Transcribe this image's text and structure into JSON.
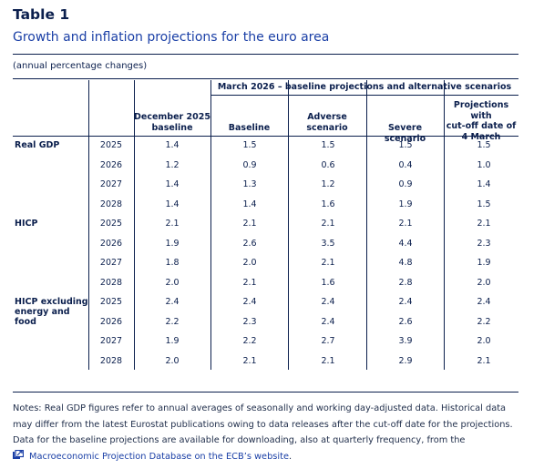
{
  "title": "Table 1",
  "subtitle": "Growth and inflation projections for the euro area",
  "unit_note": "(annual percentage changes)",
  "headers": {
    "group": "March 2026 – baseline projections and alternative scenarios",
    "december_line1": "December 2025",
    "december_line2": "baseline",
    "baseline": "Baseline",
    "adverse_line1": "Adverse",
    "adverse_line2": "scenario",
    "severe": "Severe scenario",
    "cutoff_line1": "Projections with",
    "cutoff_line2": "cut-off date of",
    "cutoff_line3": "4 March"
  },
  "groups": [
    {
      "label_lines": [
        "Real GDP"
      ],
      "rows": [
        {
          "year": "2025",
          "dec": "1.4",
          "base": "1.5",
          "adv": "1.5",
          "sev": "1.5",
          "cut": "1.5"
        },
        {
          "year": "2026",
          "dec": "1.2",
          "base": "0.9",
          "adv": "0.6",
          "sev": "0.4",
          "cut": "1.0"
        },
        {
          "year": "2027",
          "dec": "1.4",
          "base": "1.3",
          "adv": "1.2",
          "sev": "0.9",
          "cut": "1.4"
        },
        {
          "year": "2028",
          "dec": "1.4",
          "base": "1.4",
          "adv": "1.6",
          "sev": "1.9",
          "cut": "1.5"
        }
      ]
    },
    {
      "label_lines": [
        "HICP"
      ],
      "rows": [
        {
          "year": "2025",
          "dec": "2.1",
          "base": "2.1",
          "adv": "2.1",
          "sev": "2.1",
          "cut": "2.1"
        },
        {
          "year": "2026",
          "dec": "1.9",
          "base": "2.6",
          "adv": "3.5",
          "sev": "4.4",
          "cut": "2.3"
        },
        {
          "year": "2027",
          "dec": "1.8",
          "base": "2.0",
          "adv": "2.1",
          "sev": "4.8",
          "cut": "1.9"
        },
        {
          "year": "2028",
          "dec": "2.0",
          "base": "2.1",
          "adv": "1.6",
          "sev": "2.8",
          "cut": "2.0"
        }
      ]
    },
    {
      "label_lines": [
        "HICP excluding",
        "energy and",
        "food"
      ],
      "rows": [
        {
          "year": "2025",
          "dec": "2.4",
          "base": "2.4",
          "adv": "2.4",
          "sev": "2.4",
          "cut": "2.4"
        },
        {
          "year": "2026",
          "dec": "2.2",
          "base": "2.3",
          "adv": "2.4",
          "sev": "2.6",
          "cut": "2.2"
        },
        {
          "year": "2027",
          "dec": "1.9",
          "base": "2.2",
          "adv": "2.7",
          "sev": "3.9",
          "cut": "2.0"
        },
        {
          "year": "2028",
          "dec": "2.0",
          "base": "2.1",
          "adv": "2.1",
          "sev": "2.9",
          "cut": "2.1"
        }
      ]
    }
  ],
  "notes": {
    "text": "Notes: Real GDP figures refer to annual averages of seasonally and working day-adjusted data. Historical data may differ from the latest Eurostat publications owing to data releases after the cut-off date for the projections. Data for the baseline projections are available for downloading, also at quarterly frequency, from the",
    "link_text": "Macroeconomic Projection Database on the ECB’s website",
    "link_suffix": ".",
    "link_icon": "external-link-icon",
    "link_color": "#1a3fa6"
  }
}
